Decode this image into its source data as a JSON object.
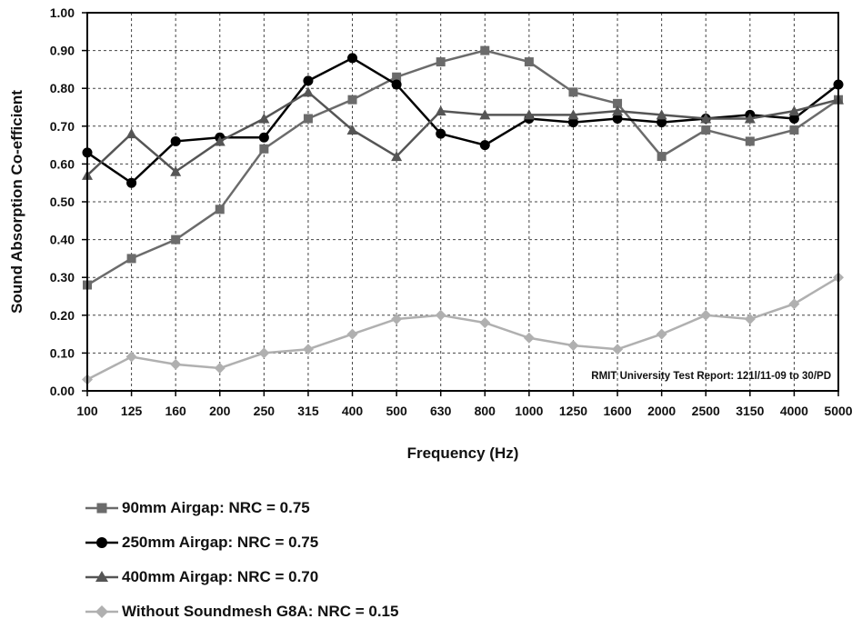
{
  "chart_data": {
    "type": "line",
    "xlabel": "Frequency (Hz)",
    "ylabel": "Sound Absorption Co-efficient",
    "x": [
      "100",
      "125",
      "160",
      "200",
      "250",
      "315",
      "400",
      "500",
      "630",
      "800",
      "1000",
      "1250",
      "1600",
      "2000",
      "2500",
      "3150",
      "4000",
      "5000"
    ],
    "yticks": [
      "0.00",
      "0.10",
      "0.20",
      "0.30",
      "0.40",
      "0.50",
      "0.60",
      "0.70",
      "0.80",
      "0.90",
      "1.00"
    ],
    "ylim": [
      0,
      1
    ],
    "grid": true,
    "legend_position": "bottom",
    "annotation": "RMIT University Test Report:  121l/11-09 to 30/PD",
    "series": [
      {
        "name": "90mm Airgap:  NRC = 0.75",
        "marker": "square",
        "color": "#6b6b6b",
        "values": [
          0.28,
          0.35,
          0.4,
          0.48,
          0.64,
          0.72,
          0.77,
          0.83,
          0.87,
          0.9,
          0.87,
          0.79,
          0.76,
          0.62,
          0.69,
          0.66,
          0.69,
          0.77
        ]
      },
      {
        "name": "250mm Airgap:  NRC = 0.75",
        "marker": "circle",
        "color": "#000000",
        "values": [
          0.63,
          0.55,
          0.66,
          0.67,
          0.67,
          0.82,
          0.88,
          0.81,
          0.68,
          0.65,
          0.72,
          0.71,
          0.72,
          0.71,
          0.72,
          0.73,
          0.72,
          0.81
        ]
      },
      {
        "name": "400mm Airgap:  NRC = 0.70",
        "marker": "triangle",
        "color": "#555555",
        "values": [
          0.57,
          0.68,
          0.58,
          0.66,
          0.72,
          0.79,
          0.69,
          0.62,
          0.74,
          0.73,
          0.73,
          0.73,
          0.74,
          0.73,
          0.72,
          0.72,
          0.74,
          0.77
        ]
      },
      {
        "name": "Without Soundmesh G8A:  NRC = 0.15",
        "marker": "diamond",
        "color": "#b0b0b0",
        "values": [
          0.03,
          0.09,
          0.07,
          0.06,
          0.1,
          0.11,
          0.15,
          0.19,
          0.2,
          0.18,
          0.14,
          0.12,
          0.11,
          0.15,
          0.2,
          0.19,
          0.23,
          0.3
        ]
      }
    ]
  }
}
